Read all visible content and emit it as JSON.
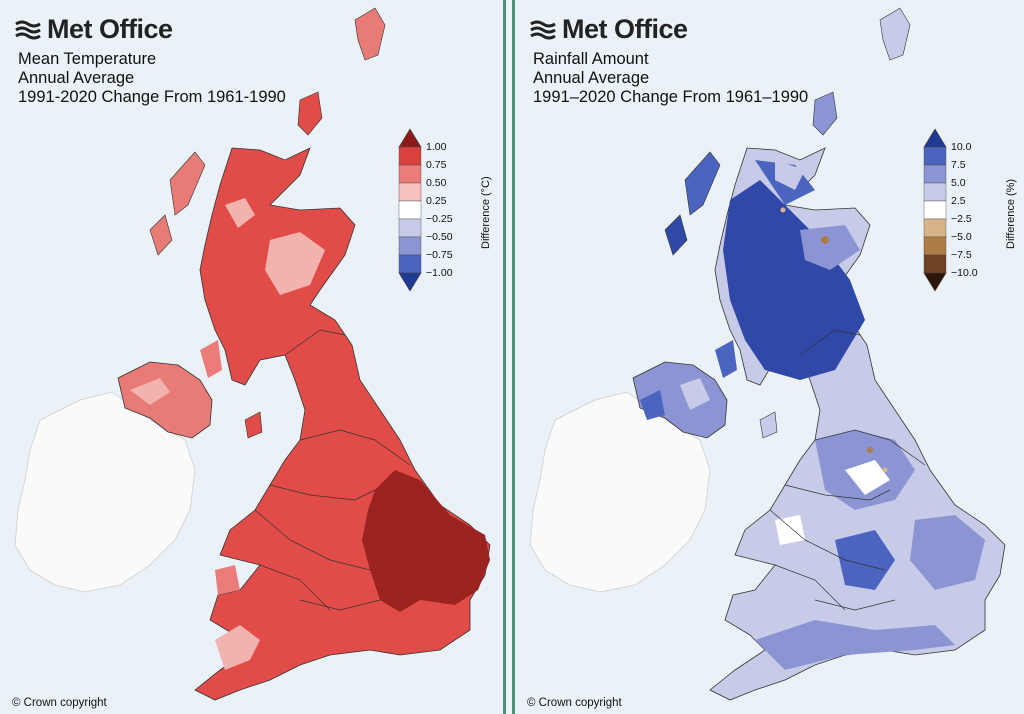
{
  "panels": [
    {
      "brand": "Met Office",
      "title_lines": [
        "Mean Temperature",
        "Annual Average",
        "1991-2020 Change From 1961-1990"
      ],
      "legend": {
        "label": "Difference (°C)",
        "ticks": [
          "1.00",
          "0.75",
          "0.50",
          "0.25",
          "−0.25",
          "−0.50",
          "−0.75",
          "−1.00"
        ],
        "colors": [
          "#8b1a1a",
          "#d9413f",
          "#ec7c79",
          "#f6c0bd",
          "#ffffff",
          "#c7cbe8",
          "#8c95d3",
          "#4b64bf",
          "#1f3a93"
        ]
      },
      "copyright": "© Crown copyright"
    },
    {
      "brand": "Met Office",
      "title_lines": [
        "Rainfall Amount",
        "Annual Average",
        "1991–2020 Change From 1961–1990"
      ],
      "legend": {
        "label": "Difference (%)",
        "ticks": [
          "10.0",
          "7.5",
          "5.0",
          "2.5",
          "−2.5",
          "−5.0",
          "−7.5",
          "−10.0"
        ],
        "colors": [
          "#1f3a93",
          "#4b64bf",
          "#8c95d3",
          "#c7cbe8",
          "#ffffff",
          "#d8b48a",
          "#b07c45",
          "#6e4323",
          "#2d1508"
        ]
      },
      "copyright": "© Crown copyright"
    }
  ]
}
